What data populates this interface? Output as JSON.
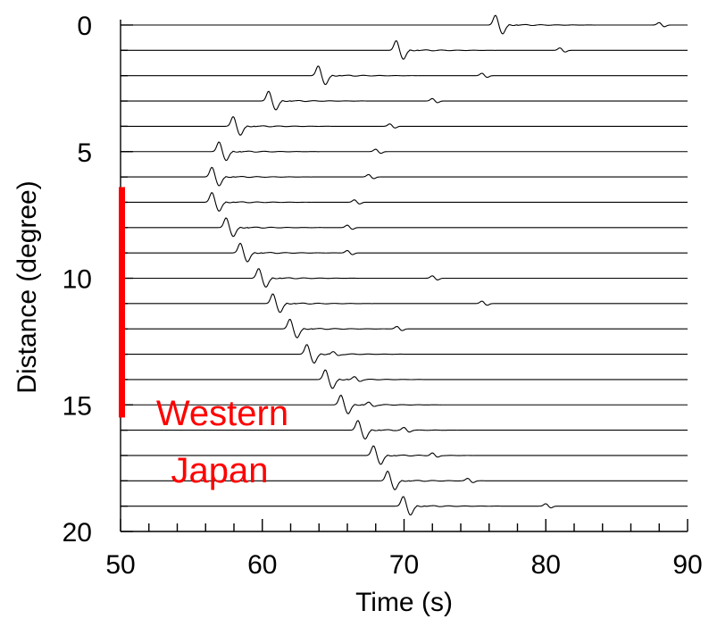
{
  "chart_data": {
    "type": "line",
    "title": "",
    "xlabel": "Time (s)",
    "ylabel": "Distance (degree)",
    "xlim": [
      50,
      90
    ],
    "ylim": [
      0,
      20
    ],
    "y_inverted": true,
    "x_major_ticks": [
      50,
      60,
      70,
      80,
      90
    ],
    "x_tick_labels": [
      "50",
      "60",
      "70",
      "80",
      "90"
    ],
    "x_minor_step": 2,
    "y_major_ticks": [
      0,
      5,
      10,
      15,
      20
    ],
    "y_tick_labels": [
      "0",
      "5",
      "10",
      "15",
      "20"
    ],
    "y_minor_step": 1,
    "grid": false,
    "trace_color": "#000000",
    "trace_distances": [
      0,
      1,
      2,
      3,
      4,
      5,
      6,
      7,
      8,
      9,
      10,
      11,
      12,
      13,
      14,
      15,
      16,
      17,
      18,
      19
    ],
    "first_arrival_times": [
      76.5,
      69.5,
      64.0,
      60.5,
      58.0,
      57.0,
      56.5,
      56.5,
      57.5,
      58.5,
      59.8,
      60.8,
      62.0,
      63.2,
      64.5,
      65.6,
      66.8,
      67.9,
      68.9,
      70.0
    ],
    "secondary_arrival_times": [
      88.0,
      81.0,
      75.5,
      72.0,
      69.0,
      68.0,
      67.5,
      66.5,
      66.0,
      66.0,
      72.0,
      75.5,
      69.5,
      65.0,
      66.5,
      67.5,
      70.0,
      72.0,
      74.5,
      80.0
    ],
    "highlight": {
      "label_line1": "Western",
      "label_line2": "Japan",
      "distance_range": [
        7,
        15.5
      ],
      "color": "#ff0000"
    }
  }
}
